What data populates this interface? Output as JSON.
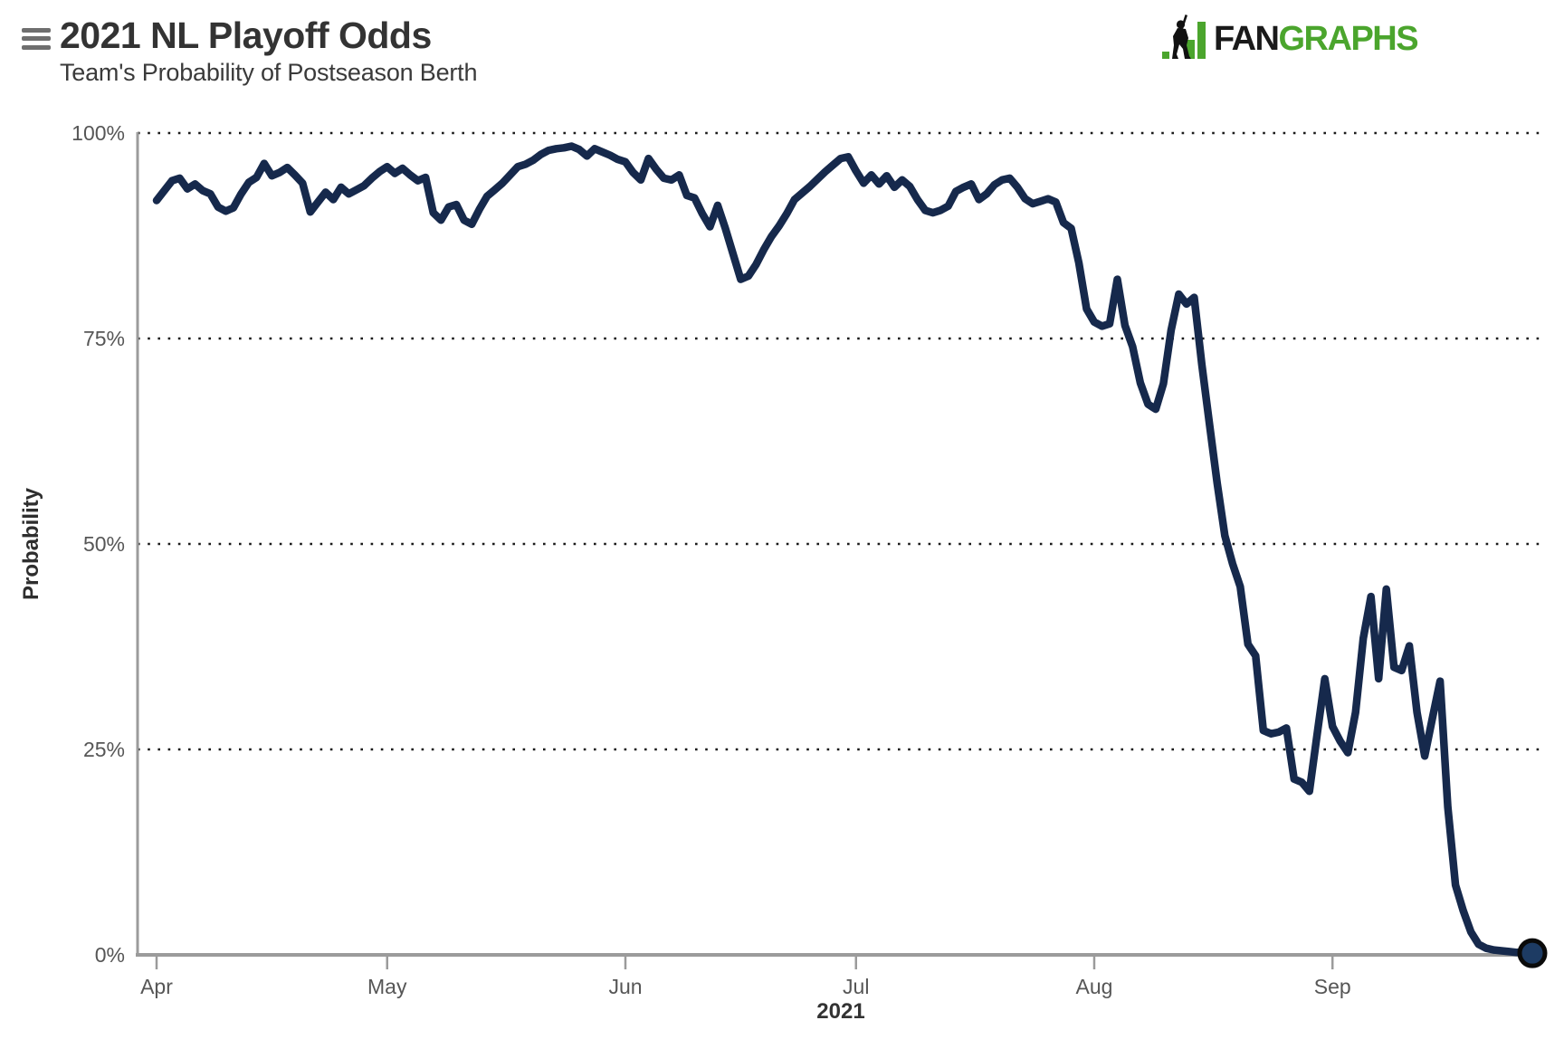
{
  "header": {
    "title": "2021 NL Playoff Odds",
    "subtitle": "Team's Probability of Postseason Berth"
  },
  "menu": {
    "icon": "hamburger-icon"
  },
  "logo": {
    "icon": "fangraphs-batter-bars-icon",
    "text_black": "FAN",
    "text_green": "GRAPHS",
    "green": "#4BA52D",
    "black": "#1A1A1A"
  },
  "chart_data": {
    "type": "line",
    "title": "2021 NL Playoff Odds",
    "subtitle": "Team's Probability of Postseason Berth",
    "xlabel": "2021",
    "ylabel": "Probability",
    "x_tick_labels": [
      "Apr",
      "May",
      "Jun",
      "Jul",
      "Aug",
      "Sep"
    ],
    "x_tick_days": [
      0,
      30,
      61,
      91,
      122,
      153
    ],
    "y_tick_labels": [
      "100%",
      "75%",
      "50%",
      "25%",
      "0%"
    ],
    "y_tick_values": [
      100,
      75,
      50,
      25,
      0
    ],
    "ylim": [
      0,
      100
    ],
    "grid": "horizontal dotted lines at 25% intervals",
    "legend": "none",
    "start_date": "2021-04-01",
    "end_date": "2021-09-27",
    "frequency": "daily",
    "line_color": "#16294C",
    "end_marker": {
      "shape": "circle",
      "fill": "#1D3B63",
      "stroke": "#0A0A0A",
      "value": 0.2
    },
    "series": [
      {
        "name": "Team's Probability of Postseason Berth",
        "unit": "%",
        "values": [
          91.8,
          93.0,
          94.2,
          94.5,
          93.2,
          93.8,
          93.0,
          92.6,
          91.0,
          90.5,
          90.9,
          92.6,
          94.0,
          94.6,
          96.3,
          94.8,
          95.2,
          95.8,
          94.9,
          93.9,
          90.4,
          91.6,
          92.8,
          91.9,
          93.4,
          92.6,
          93.1,
          93.6,
          94.5,
          95.3,
          95.9,
          95.1,
          95.7,
          94.9,
          94.2,
          94.6,
          90.3,
          89.4,
          91.0,
          91.3,
          89.4,
          88.9,
          90.7,
          92.3,
          93.1,
          93.9,
          94.9,
          95.9,
          96.2,
          96.7,
          97.4,
          97.9,
          98.1,
          98.2,
          98.4,
          98.0,
          97.2,
          98.1,
          97.7,
          97.3,
          96.8,
          96.5,
          95.2,
          94.3,
          96.9,
          95.6,
          94.5,
          94.3,
          94.9,
          92.4,
          92.1,
          90.2,
          88.6,
          91.2,
          88.4,
          85.3,
          82.2,
          82.6,
          84.0,
          85.8,
          87.4,
          88.7,
          90.2,
          91.9,
          92.7,
          93.5,
          94.4,
          95.3,
          96.1,
          96.9,
          97.1,
          95.4,
          93.9,
          94.9,
          93.8,
          94.8,
          93.4,
          94.3,
          93.5,
          91.9,
          90.6,
          90.3,
          90.6,
          91.1,
          92.9,
          93.4,
          93.8,
          91.9,
          92.6,
          93.7,
          94.3,
          94.5,
          93.4,
          92.0,
          91.4,
          91.7,
          92.0,
          91.6,
          89.1,
          88.4,
          84.2,
          78.6,
          77.0,
          76.5,
          76.8,
          82.2,
          76.6,
          74.0,
          69.6,
          67.0,
          66.4,
          69.5,
          76.0,
          80.4,
          79.2,
          80.0,
          71.8,
          64.5,
          57.4,
          51.0,
          47.6,
          44.8,
          37.8,
          36.4,
          27.3,
          26.9,
          27.1,
          27.6,
          21.4,
          21.0,
          19.9,
          26.8,
          33.6,
          27.8,
          26.0,
          24.6,
          29.5,
          38.5,
          43.6,
          33.6,
          44.5,
          35.0,
          34.6,
          37.6,
          29.5,
          24.2,
          28.8,
          33.3,
          18.0,
          8.5,
          5.4,
          2.8,
          1.3,
          0.8,
          0.6,
          0.5,
          0.4,
          0.3,
          0.3,
          0.2
        ]
      }
    ]
  }
}
